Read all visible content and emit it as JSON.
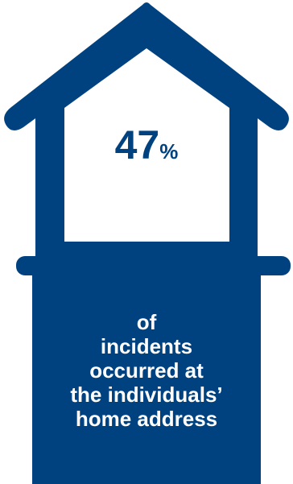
{
  "colors": {
    "house_fill": "#004280",
    "window_fill": "#ffffff",
    "number_text": "#004280",
    "caption_text": "#ffffff"
  },
  "statistic": {
    "value": "47",
    "unit": "%",
    "caption_lines": [
      "of",
      "incidents",
      "occurred at",
      "the individuals’",
      "home address"
    ]
  }
}
